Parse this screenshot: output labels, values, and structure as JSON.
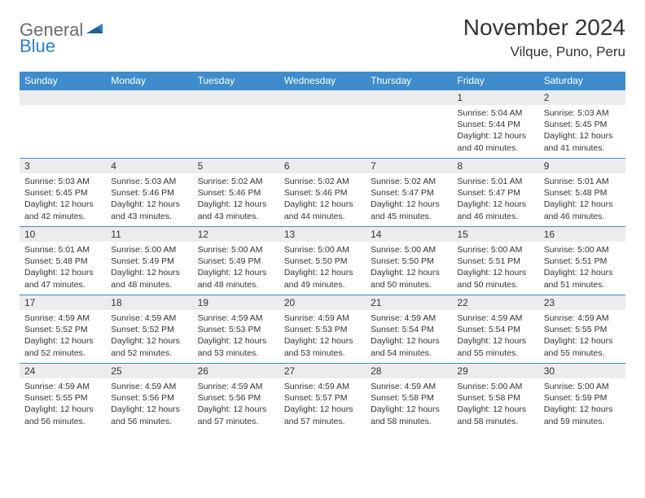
{
  "logo": {
    "part1": "General",
    "part2": "Blue"
  },
  "title": "November 2024",
  "location": "Vilque, Puno, Peru",
  "weekdays": [
    "Sunday",
    "Monday",
    "Tuesday",
    "Wednesday",
    "Thursday",
    "Friday",
    "Saturday"
  ],
  "colors": {
    "header_bg": "#3e8ccc",
    "header_fg": "#ffffff",
    "daynum_bg": "#ececec",
    "border": "#3e8ccc",
    "logo_gray": "#6b6b6b",
    "logo_blue": "#2f7fc2",
    "text": "#333333"
  },
  "cells": [
    [
      {
        "blank": true
      },
      {
        "blank": true
      },
      {
        "blank": true
      },
      {
        "blank": true
      },
      {
        "blank": true
      },
      {
        "day": "1",
        "sunrise": "Sunrise: 5:04 AM",
        "sunset": "Sunset: 5:44 PM",
        "daylight": "Daylight: 12 hours and 40 minutes."
      },
      {
        "day": "2",
        "sunrise": "Sunrise: 5:03 AM",
        "sunset": "Sunset: 5:45 PM",
        "daylight": "Daylight: 12 hours and 41 minutes."
      }
    ],
    [
      {
        "day": "3",
        "sunrise": "Sunrise: 5:03 AM",
        "sunset": "Sunset: 5:45 PM",
        "daylight": "Daylight: 12 hours and 42 minutes."
      },
      {
        "day": "4",
        "sunrise": "Sunrise: 5:03 AM",
        "sunset": "Sunset: 5:46 PM",
        "daylight": "Daylight: 12 hours and 43 minutes."
      },
      {
        "day": "5",
        "sunrise": "Sunrise: 5:02 AM",
        "sunset": "Sunset: 5:46 PM",
        "daylight": "Daylight: 12 hours and 43 minutes."
      },
      {
        "day": "6",
        "sunrise": "Sunrise: 5:02 AM",
        "sunset": "Sunset: 5:46 PM",
        "daylight": "Daylight: 12 hours and 44 minutes."
      },
      {
        "day": "7",
        "sunrise": "Sunrise: 5:02 AM",
        "sunset": "Sunset: 5:47 PM",
        "daylight": "Daylight: 12 hours and 45 minutes."
      },
      {
        "day": "8",
        "sunrise": "Sunrise: 5:01 AM",
        "sunset": "Sunset: 5:47 PM",
        "daylight": "Daylight: 12 hours and 46 minutes."
      },
      {
        "day": "9",
        "sunrise": "Sunrise: 5:01 AM",
        "sunset": "Sunset: 5:48 PM",
        "daylight": "Daylight: 12 hours and 46 minutes."
      }
    ],
    [
      {
        "day": "10",
        "sunrise": "Sunrise: 5:01 AM",
        "sunset": "Sunset: 5:48 PM",
        "daylight": "Daylight: 12 hours and 47 minutes."
      },
      {
        "day": "11",
        "sunrise": "Sunrise: 5:00 AM",
        "sunset": "Sunset: 5:49 PM",
        "daylight": "Daylight: 12 hours and 48 minutes."
      },
      {
        "day": "12",
        "sunrise": "Sunrise: 5:00 AM",
        "sunset": "Sunset: 5:49 PM",
        "daylight": "Daylight: 12 hours and 48 minutes."
      },
      {
        "day": "13",
        "sunrise": "Sunrise: 5:00 AM",
        "sunset": "Sunset: 5:50 PM",
        "daylight": "Daylight: 12 hours and 49 minutes."
      },
      {
        "day": "14",
        "sunrise": "Sunrise: 5:00 AM",
        "sunset": "Sunset: 5:50 PM",
        "daylight": "Daylight: 12 hours and 50 minutes."
      },
      {
        "day": "15",
        "sunrise": "Sunrise: 5:00 AM",
        "sunset": "Sunset: 5:51 PM",
        "daylight": "Daylight: 12 hours and 50 minutes."
      },
      {
        "day": "16",
        "sunrise": "Sunrise: 5:00 AM",
        "sunset": "Sunset: 5:51 PM",
        "daylight": "Daylight: 12 hours and 51 minutes."
      }
    ],
    [
      {
        "day": "17",
        "sunrise": "Sunrise: 4:59 AM",
        "sunset": "Sunset: 5:52 PM",
        "daylight": "Daylight: 12 hours and 52 minutes."
      },
      {
        "day": "18",
        "sunrise": "Sunrise: 4:59 AM",
        "sunset": "Sunset: 5:52 PM",
        "daylight": "Daylight: 12 hours and 52 minutes."
      },
      {
        "day": "19",
        "sunrise": "Sunrise: 4:59 AM",
        "sunset": "Sunset: 5:53 PM",
        "daylight": "Daylight: 12 hours and 53 minutes."
      },
      {
        "day": "20",
        "sunrise": "Sunrise: 4:59 AM",
        "sunset": "Sunset: 5:53 PM",
        "daylight": "Daylight: 12 hours and 53 minutes."
      },
      {
        "day": "21",
        "sunrise": "Sunrise: 4:59 AM",
        "sunset": "Sunset: 5:54 PM",
        "daylight": "Daylight: 12 hours and 54 minutes."
      },
      {
        "day": "22",
        "sunrise": "Sunrise: 4:59 AM",
        "sunset": "Sunset: 5:54 PM",
        "daylight": "Daylight: 12 hours and 55 minutes."
      },
      {
        "day": "23",
        "sunrise": "Sunrise: 4:59 AM",
        "sunset": "Sunset: 5:55 PM",
        "daylight": "Daylight: 12 hours and 55 minutes."
      }
    ],
    [
      {
        "day": "24",
        "sunrise": "Sunrise: 4:59 AM",
        "sunset": "Sunset: 5:55 PM",
        "daylight": "Daylight: 12 hours and 56 minutes."
      },
      {
        "day": "25",
        "sunrise": "Sunrise: 4:59 AM",
        "sunset": "Sunset: 5:56 PM",
        "daylight": "Daylight: 12 hours and 56 minutes."
      },
      {
        "day": "26",
        "sunrise": "Sunrise: 4:59 AM",
        "sunset": "Sunset: 5:56 PM",
        "daylight": "Daylight: 12 hours and 57 minutes."
      },
      {
        "day": "27",
        "sunrise": "Sunrise: 4:59 AM",
        "sunset": "Sunset: 5:57 PM",
        "daylight": "Daylight: 12 hours and 57 minutes."
      },
      {
        "day": "28",
        "sunrise": "Sunrise: 4:59 AM",
        "sunset": "Sunset: 5:58 PM",
        "daylight": "Daylight: 12 hours and 58 minutes."
      },
      {
        "day": "29",
        "sunrise": "Sunrise: 5:00 AM",
        "sunset": "Sunset: 5:58 PM",
        "daylight": "Daylight: 12 hours and 58 minutes."
      },
      {
        "day": "30",
        "sunrise": "Sunrise: 5:00 AM",
        "sunset": "Sunset: 5:59 PM",
        "daylight": "Daylight: 12 hours and 59 minutes."
      }
    ]
  ]
}
